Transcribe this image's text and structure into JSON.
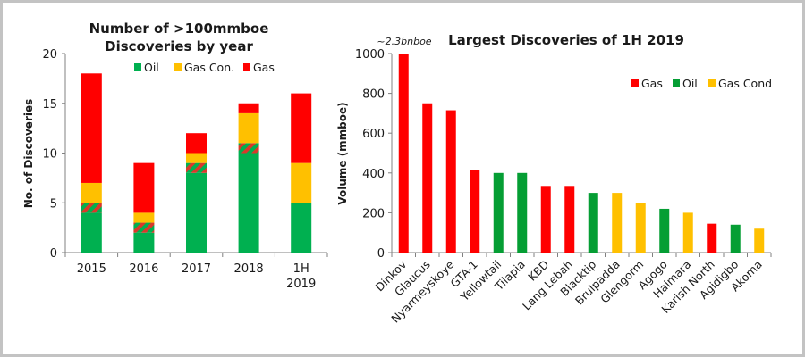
{
  "colors": {
    "oil": "#00b050",
    "gas_con": "#ffc000",
    "gas": "#ff0000",
    "oil_right": "#059e34",
    "axis": "#808080"
  },
  "chart_data": [
    {
      "type": "bar",
      "stacked": true,
      "title": "Number of >100mmboe Discoveries by year",
      "title_lines": [
        "Number of >100mmboe",
        "Discoveries by year"
      ],
      "xlabel": "",
      "ylabel": "No. of Discoveries",
      "ylim": [
        0,
        20
      ],
      "yticks": [
        0,
        5,
        10,
        15,
        20
      ],
      "legend_position": "top",
      "categories": [
        "2015",
        "2016",
        "2017",
        "2018",
        "1H 2019"
      ],
      "category_lines": [
        [
          "2015"
        ],
        [
          "2016"
        ],
        [
          "2017"
        ],
        [
          "2018"
        ],
        [
          "1H",
          "2019"
        ]
      ],
      "series": [
        {
          "name": "Oil",
          "color_key": "oil",
          "values": [
            4,
            2,
            8,
            10,
            5
          ]
        },
        {
          "name": "Oil/Gas (hatched)",
          "color_key": "hatch",
          "values": [
            1,
            1,
            1,
            1,
            0
          ]
        },
        {
          "name": "Gas Con.",
          "color_key": "gas_con",
          "values": [
            2,
            1,
            1,
            3,
            4
          ]
        },
        {
          "name": "Gas",
          "color_key": "gas",
          "values": [
            11,
            5,
            2,
            1,
            7
          ]
        }
      ],
      "legend": [
        {
          "name": "Oil",
          "color_key": "oil"
        },
        {
          "name": "Gas Con.",
          "color_key": "gas_con"
        },
        {
          "name": "Gas",
          "color_key": "gas"
        }
      ]
    },
    {
      "type": "bar",
      "title": "Largest Discoveries of 1H 2019",
      "xlabel": "",
      "ylabel": "Volume (mmboe)",
      "ylim": [
        0,
        1000
      ],
      "yticks": [
        0,
        200,
        400,
        600,
        800,
        1000
      ],
      "legend_position": "top-right",
      "annotation": "~2.3bnboe",
      "categories": [
        "Dinkov",
        "Glaucus",
        "Nyarmeyskoye",
        "GTA-1",
        "Yellowtail",
        "Tilapia",
        "KBD",
        "Lang Lebah",
        "Blacktip",
        "Brulpadda",
        "Glengorm",
        "Agogo",
        "Haimara",
        "Karish North",
        "Agidigbo",
        "Akoma"
      ],
      "values": [
        1000,
        750,
        715,
        415,
        400,
        400,
        335,
        335,
        300,
        300,
        250,
        220,
        200,
        145,
        140,
        120
      ],
      "types": [
        "Gas",
        "Gas",
        "Gas",
        "Gas",
        "Oil",
        "Oil",
        "Gas",
        "Gas",
        "Oil",
        "Gas Cond",
        "Gas Cond",
        "Oil",
        "Gas Cond",
        "Gas",
        "Oil",
        "Gas Cond"
      ],
      "legend": [
        {
          "name": "Gas",
          "color_key": "gas"
        },
        {
          "name": "Oil",
          "color_key": "oil_right"
        },
        {
          "name": "Gas Cond",
          "color_key": "gas_con"
        }
      ]
    }
  ]
}
